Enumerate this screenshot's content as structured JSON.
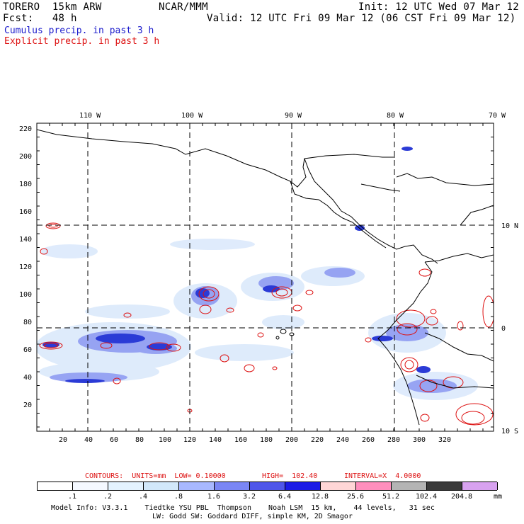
{
  "header": {
    "model_line": "TORERO  15km ARW",
    "center": "NCAR/MMM",
    "init": "Init: 12 UTC Wed 07 Mar 12",
    "fcst": "Fcst:   48 h",
    "valid": "Valid: 12 UTC Fri 09 Mar 12 (06 CST Fri 09 Mar 12)",
    "legend_cumulus": "Cumulus precip. in past 3 h",
    "legend_explicit": "Explicit precip. in past 3 h"
  },
  "map": {
    "lon_labels": [
      "110 W",
      "100 W",
      "90 W",
      "80 W",
      "70 W"
    ],
    "lat_labels": [
      "10 N",
      "0",
      "10 S"
    ],
    "y_ticks": [
      "220",
      "200",
      "180",
      "160",
      "140",
      "120",
      "100",
      "80",
      "60",
      "40",
      "20"
    ],
    "x_ticks": [
      "20",
      "40",
      "60",
      "80",
      "100",
      "120",
      "140",
      "160",
      "180",
      "200",
      "220",
      "240",
      "260",
      "280",
      "300",
      "320"
    ],
    "colors": {
      "cumulus": "#2b3bd6",
      "explicit": "#dd1111",
      "coast": "#000000",
      "grid": "#000000"
    }
  },
  "contours_line": {
    "label": "CONTOURS:  UNITS=mm  LOW= 0.10000",
    "high": "HIGH=  102.40",
    "interval": "INTERVAL=X  4.0000"
  },
  "colorbar": {
    "labels": [
      ".1",
      ".2",
      ".4",
      ".8",
      "1.6",
      "3.2",
      "6.4",
      "12.8",
      "25.6",
      "51.2",
      "102.4",
      "204.8"
    ],
    "unit": "mm",
    "colors": [
      "#ffffff",
      "#f4f8ff",
      "#e4f3ff",
      "#d2e8fa",
      "#a8b8ff",
      "#7a86f4",
      "#4f56ea",
      "#1c1ce6",
      "#ffd6d6",
      "#ff8fbd",
      "#b4b4b4",
      "#3a3a3a",
      "#d8a2f0"
    ]
  },
  "footer": {
    "line1": "Model Info: V3.3.1    Tiedtke YSU PBL  Thompson    Noah LSM  15 km,    44 levels,   31 sec",
    "line2": "LW: Godd SW: Goddard DIFF, simple KM, 2D Smagor"
  }
}
